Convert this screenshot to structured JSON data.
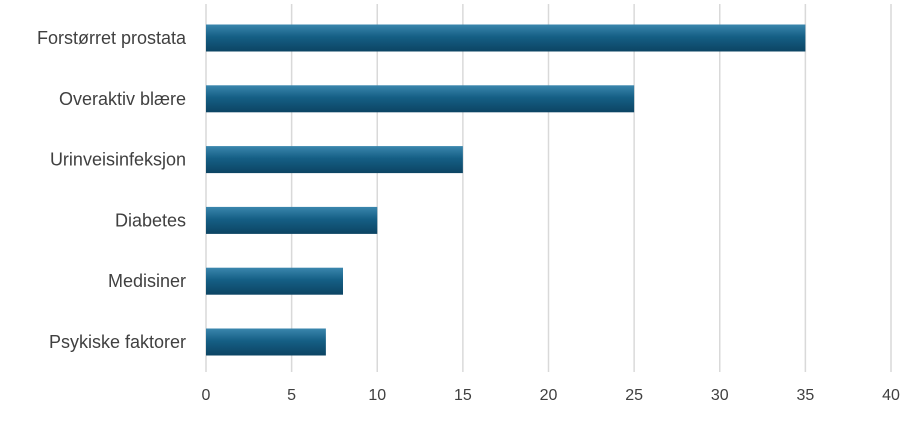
{
  "chart_data": {
    "type": "bar",
    "orientation": "horizontal",
    "categories": [
      "Forstørret prostata",
      "Overaktiv blære",
      "Urinveisinfeksjon",
      "Diabetes",
      "Medisiner",
      "Psykiske faktorer"
    ],
    "values": [
      35,
      25,
      15,
      10,
      8,
      7
    ],
    "xlim": [
      0,
      40
    ],
    "xticks": [
      0,
      5,
      10,
      15,
      20,
      25,
      30,
      35,
      40
    ],
    "title": "",
    "xlabel": "",
    "ylabel": "",
    "grid": "vertical",
    "legend": "none",
    "bar_color": "#155f85",
    "bar_color_light": "#3a86ad",
    "bar_color_dark": "#0c4463"
  }
}
